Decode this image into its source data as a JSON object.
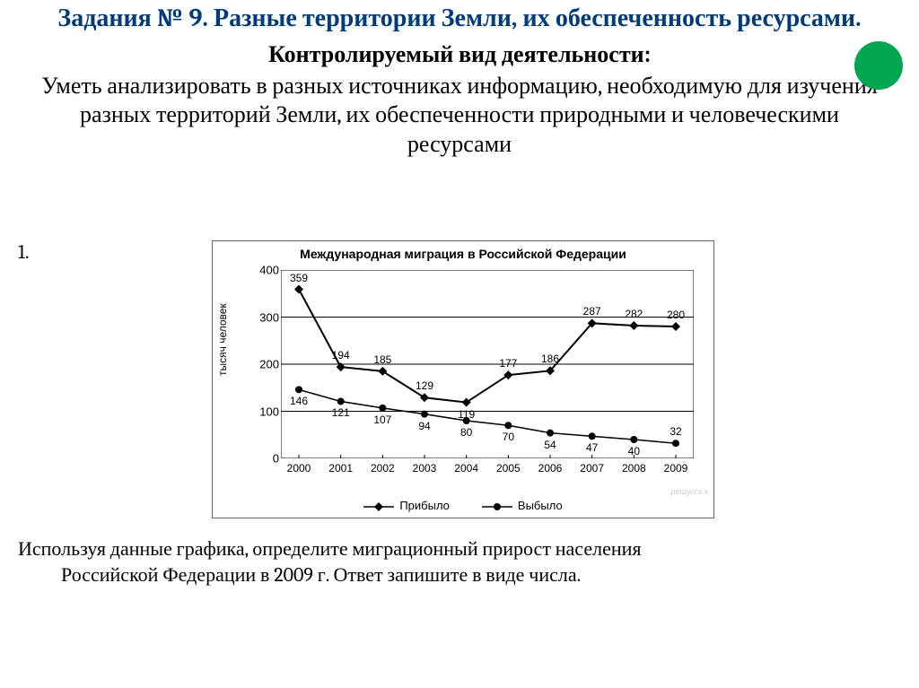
{
  "header": {
    "title": "Задания № 9. Разные территории Земли, их обеспеченность ресурсами.",
    "title_color": "#003b7a",
    "title_fontsize": 28
  },
  "dot": {
    "color": "#00a651"
  },
  "subtitle": "Контролируемый вид деятельности:",
  "body": "Уметь анализировать в разных источниках информацию, необходимую для изучения разных территорий Земли, их обеспеченности природными и человеческими ресурсами",
  "task_number": "1.",
  "chart": {
    "type": "line",
    "title": "Международная миграция в Российской Федерации",
    "ylabel": "тысяч человек",
    "ylim": [
      0,
      400
    ],
    "ytick_step": 100,
    "yticks": [
      0,
      100,
      200,
      300,
      400
    ],
    "xcats": [
      "2000",
      "2001",
      "2002",
      "2003",
      "2004",
      "2005",
      "2006",
      "2007",
      "2008",
      "2009"
    ],
    "series": [
      {
        "name": "Прибыло",
        "marker": "diamond",
        "values": [
          359,
          194,
          185,
          129,
          119,
          177,
          186,
          287,
          282,
          280
        ],
        "label_dy": [
          -14,
          -14,
          -14,
          -14,
          12,
          -14,
          -14,
          -14,
          -14,
          -14
        ],
        "color": "#000000",
        "line_width": 2
      },
      {
        "name": "Выбыло",
        "marker": "circle",
        "values": [
          146,
          121,
          107,
          94,
          80,
          70,
          54,
          47,
          40,
          32
        ],
        "label_dy": [
          12,
          12,
          12,
          12,
          12,
          12,
          12,
          12,
          12,
          -14
        ],
        "color": "#000000",
        "line_width": 1.5
      }
    ],
    "grid_color": "#000000",
    "background_color": "#ffffff",
    "watermark": "решуогэ.х"
  },
  "question_line1": "Используя данные графика, определите миграционный прирост населения",
  "question_line2": "Российской Федерации в 2009 г. Ответ запишите в виде числа."
}
